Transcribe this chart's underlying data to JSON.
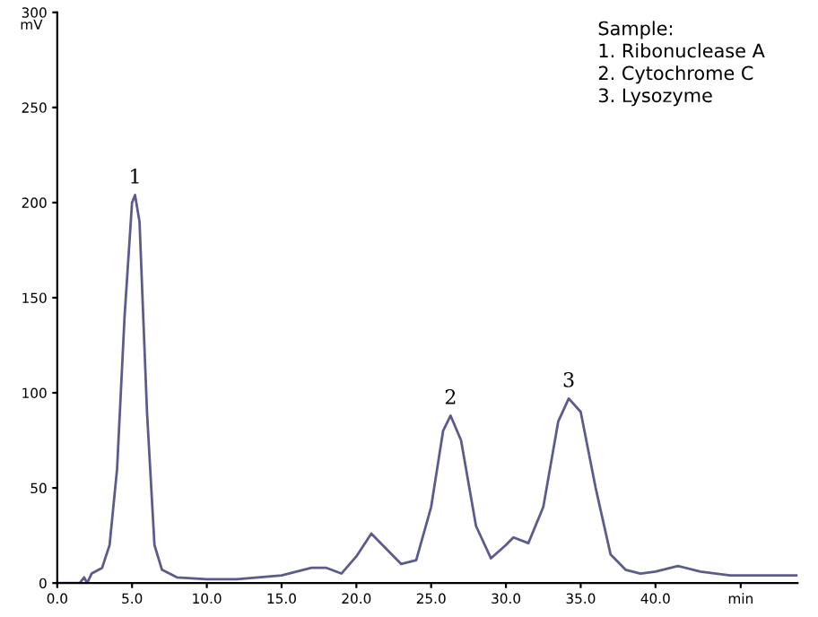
{
  "chart_data": {
    "type": "line",
    "ylabel": "mV",
    "x": [
      0,
      1.5,
      1.8,
      2.0,
      2.3,
      3.0,
      3.5,
      4.0,
      4.5,
      5.0,
      5.2,
      5.5,
      6.0,
      6.5,
      7,
      8,
      10,
      12,
      15,
      17,
      18,
      19,
      20,
      21,
      22,
      23,
      24,
      25,
      25.8,
      26.3,
      27,
      28,
      29,
      30,
      30.5,
      31.5,
      32.5,
      33.5,
      34.2,
      35,
      36,
      37,
      38,
      39,
      40,
      41.5,
      43,
      45,
      49.5
    ],
    "series": [
      {
        "color": "#5c5c8c",
        "values": [
          0,
          0,
          3,
          0,
          5,
          8,
          20,
          60,
          140,
          200,
          204,
          190,
          90,
          20,
          7,
          3,
          2,
          2,
          4,
          8,
          8,
          5,
          14,
          26,
          18,
          10,
          12,
          40,
          80,
          88,
          75,
          30,
          13,
          20,
          24,
          21,
          40,
          85,
          97,
          90,
          50,
          15,
          7,
          5,
          6,
          9,
          6,
          4,
          4
        ]
      }
    ],
    "xlim": [
      0,
      49.5
    ],
    "ylim": [
      0,
      300
    ],
    "xticks": [
      {
        "value": 0,
        "label": "0.0"
      },
      {
        "value": 5,
        "label": "5.0"
      },
      {
        "value": 10,
        "label": "10.0"
      },
      {
        "value": 15,
        "label": "15.0"
      },
      {
        "value": 20,
        "label": "20.0"
      },
      {
        "value": 25,
        "label": "25.0"
      },
      {
        "value": 30,
        "label": "30.0"
      },
      {
        "value": 35,
        "label": "35.0"
      },
      {
        "value": 40,
        "label": "40.0"
      },
      {
        "value": 45.7,
        "label": "min"
      }
    ],
    "yticks": [
      0,
      50,
      100,
      150,
      200,
      250,
      300
    ],
    "grid": false,
    "legend": false,
    "marker": "none",
    "line_style": "solid",
    "annotations": [
      {
        "text": "1",
        "x": 5.2,
        "y": 204
      },
      {
        "text": "2",
        "x": 26.3,
        "y": 88
      },
      {
        "text": "3",
        "x": 34.2,
        "y": 97
      },
      "Sample:\n1. Ribonuclease A\n2. Cytochrome C\n3. Lysozyme"
    ]
  }
}
